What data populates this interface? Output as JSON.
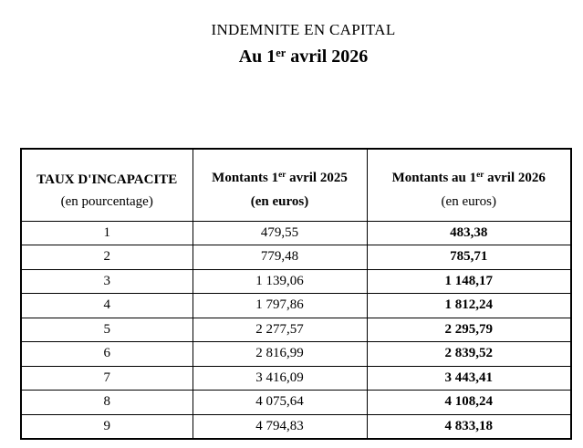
{
  "page": {
    "title": "INDEMNITE EN CAPITAL",
    "subtitle": {
      "prefix": "Au 1",
      "sup": "er",
      "suffix": " avril 2026"
    }
  },
  "table": {
    "headers": {
      "col1": {
        "line1": "TAUX D'INCAPACITE",
        "line2": "(en pourcentage)"
      },
      "col2": {
        "line1_prefix": "Montants 1",
        "sup": "er",
        "line1_suffix": " avril 2025",
        "line2": "(en euros)"
      },
      "col3": {
        "line1_prefix": "Montants au 1",
        "sup": "er",
        "line1_suffix": " avril 2026",
        "line2": "(en euros)"
      }
    },
    "rows": [
      {
        "taux": "1",
        "montant_2025": "479,55",
        "montant_2026": "483,38"
      },
      {
        "taux": "2",
        "montant_2025": "779,48",
        "montant_2026": "785,71"
      },
      {
        "taux": "3",
        "montant_2025": "1 139,06",
        "montant_2026": "1 148,17"
      },
      {
        "taux": "4",
        "montant_2025": "1 797,86",
        "montant_2026": "1 812,24"
      },
      {
        "taux": "5",
        "montant_2025": "2 277,57",
        "montant_2026": "2 295,79"
      },
      {
        "taux": "6",
        "montant_2025": "2 816,99",
        "montant_2026": "2 839,52"
      },
      {
        "taux": "7",
        "montant_2025": "3 416,09",
        "montant_2026": "3 443,41"
      },
      {
        "taux": "8",
        "montant_2025": "4 075,64",
        "montant_2026": "4 108,24"
      },
      {
        "taux": "9",
        "montant_2025": "4 794,83",
        "montant_2026": "4 833,18"
      }
    ],
    "text_color": "#000000",
    "border_color": "#000000",
    "background_color": "#ffffff"
  }
}
